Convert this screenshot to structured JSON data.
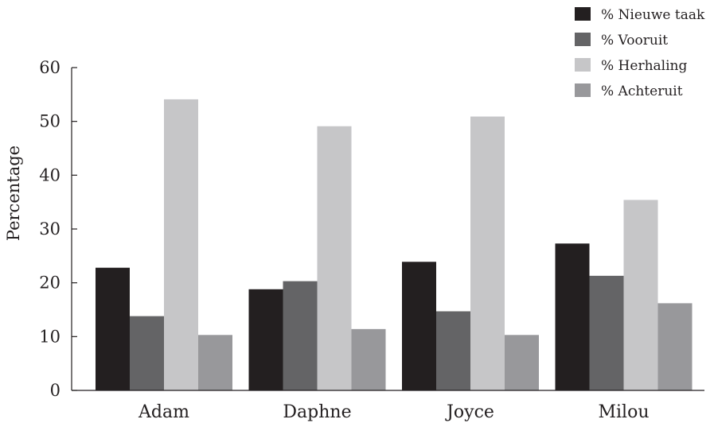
{
  "chart_data": {
    "type": "bar",
    "title": "",
    "xlabel": "",
    "ylabel": "Percentage",
    "ylim": [
      0,
      60
    ],
    "yticks": [
      0,
      10,
      20,
      30,
      40,
      50,
      60
    ],
    "grid": false,
    "legend_position": "top-right",
    "categories": [
      "Adam",
      "Daphne",
      "Joyce",
      "Milou"
    ],
    "series": [
      {
        "name": "% Nieuwe taak",
        "color": "#231f20",
        "values": [
          22.8,
          18.8,
          23.9,
          27.3
        ]
      },
      {
        "name": "% Vooruit",
        "color": "#646466",
        "values": [
          13.8,
          20.3,
          14.7,
          21.3
        ]
      },
      {
        "name": "% Herhaling",
        "color": "#c6c6c8",
        "values": [
          54.1,
          49.1,
          50.9,
          35.4
        ]
      },
      {
        "name": "% Achteruit",
        "color": "#98989b",
        "values": [
          10.3,
          11.4,
          10.3,
          16.2
        ]
      }
    ]
  }
}
